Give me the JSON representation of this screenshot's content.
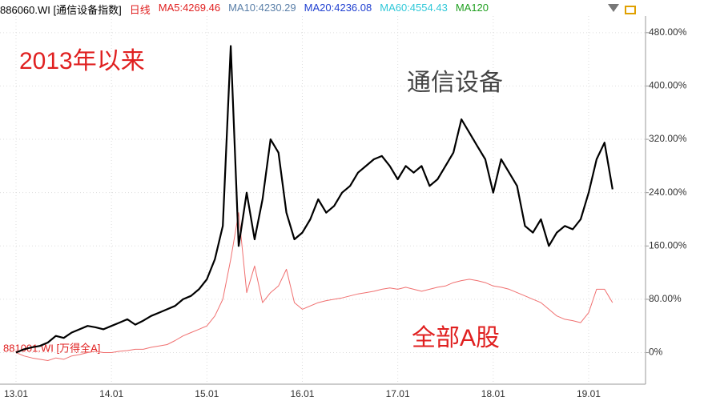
{
  "chart_data": {
    "type": "line",
    "title": "2013年以来",
    "header_items": [
      {
        "text": "886060.WI [通信设备指数]",
        "color": "#000000"
      },
      {
        "text": "日线",
        "color": "#e02020"
      },
      {
        "text": "MA5:4269.46",
        "color": "#e02020"
      },
      {
        "text": "MA10:4230.29",
        "color": "#5a7fa8"
      },
      {
        "text": "MA20:4236.08",
        "color": "#1f3fd0"
      },
      {
        "text": "MA60:4554.43",
        "color": "#30c8d8"
      },
      {
        "text": "MA120",
        "color": "#20a020"
      }
    ],
    "annotations": [
      "881001.WI [万得全A]"
    ],
    "categories": [
      "13.01",
      null,
      null,
      null,
      null,
      null,
      null,
      null,
      null,
      null,
      null,
      null,
      "14.01",
      null,
      null,
      null,
      null,
      null,
      null,
      null,
      null,
      null,
      null,
      null,
      "15.01",
      null,
      null,
      null,
      null,
      null,
      null,
      null,
      null,
      null,
      null,
      null,
      "16.01",
      null,
      null,
      null,
      null,
      null,
      null,
      null,
      null,
      null,
      null,
      null,
      "17.01",
      null,
      null,
      null,
      null,
      null,
      null,
      null,
      null,
      null,
      null,
      null,
      "18.01",
      null,
      null,
      null,
      null,
      null,
      null,
      null,
      null,
      null,
      null,
      null,
      "19.01",
      null,
      null,
      null
    ],
    "series": [
      {
        "name": "通信设备",
        "color": "#000000",
        "width": 2.2,
        "values": [
          0,
          5,
          8,
          10,
          15,
          25,
          22,
          30,
          35,
          40,
          38,
          35,
          40,
          45,
          50,
          42,
          48,
          55,
          60,
          65,
          70,
          80,
          85,
          95,
          110,
          140,
          190,
          460,
          160,
          240,
          170,
          230,
          320,
          300,
          210,
          170,
          180,
          200,
          230,
          210,
          220,
          240,
          250,
          270,
          280,
          290,
          295,
          280,
          260,
          280,
          270,
          280,
          250,
          260,
          280,
          300,
          350,
          330,
          310,
          290,
          240,
          290,
          270,
          250,
          190,
          180,
          200,
          160,
          180,
          190,
          185,
          200,
          240,
          290,
          315,
          245
        ]
      },
      {
        "name": "全部A股",
        "color": "#f07070",
        "width": 1,
        "values": [
          0,
          -5,
          -8,
          -10,
          -12,
          -8,
          -10,
          -5,
          -3,
          0,
          2,
          0,
          0,
          2,
          3,
          5,
          5,
          8,
          10,
          12,
          18,
          25,
          30,
          35,
          40,
          55,
          80,
          140,
          210,
          90,
          130,
          75,
          90,
          100,
          125,
          75,
          65,
          70,
          75,
          78,
          80,
          82,
          85,
          88,
          90,
          92,
          95,
          97,
          95,
          98,
          95,
          92,
          95,
          98,
          100,
          105,
          108,
          110,
          108,
          105,
          100,
          98,
          95,
          90,
          85,
          80,
          75,
          65,
          55,
          50,
          48,
          45,
          60,
          95,
          95,
          75
        ]
      }
    ],
    "ylim": [
      -45,
      505
    ],
    "yticks": [
      {
        "value": 0,
        "label": "0%"
      },
      {
        "value": 80,
        "label": "80.00%"
      },
      {
        "value": 160,
        "label": "160.00%"
      },
      {
        "value": 240,
        "label": "240.00%"
      },
      {
        "value": 320,
        "label": "320.00%"
      },
      {
        "value": 400,
        "label": "400.00%"
      },
      {
        "value": 480,
        "label": "480.00%"
      }
    ],
    "grid": true
  }
}
